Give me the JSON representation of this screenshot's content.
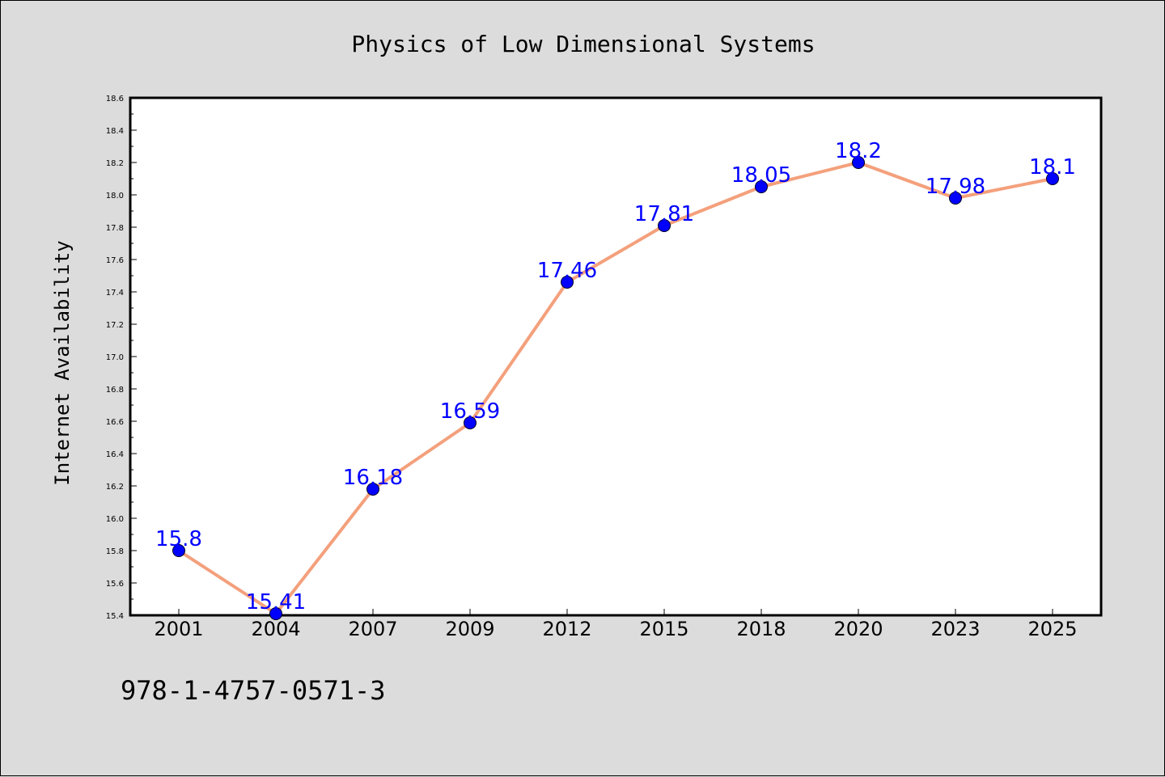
{
  "chart_data": {
    "type": "line",
    "title": "Physics of Low Dimensional Systems",
    "ylabel": "Internet Availability",
    "xlabel": "",
    "categories": [
      "2001",
      "2004",
      "2007",
      "2009",
      "2012",
      "2015",
      "2018",
      "2020",
      "2023",
      "2025"
    ],
    "series": [
      {
        "values": [
          15.8,
          15.41,
          16.18,
          16.59,
          17.46,
          17.81,
          18.05,
          18.2,
          17.98,
          18.1
        ],
        "data_labels": [
          "15.8",
          "15.41",
          "16.18",
          "16.59",
          "17.46",
          "17.81",
          "18.05",
          "18.2",
          "17.98",
          "18.1"
        ]
      }
    ],
    "ylim": [
      15.4,
      18.6
    ],
    "yticks": [
      "15.4",
      "15.6",
      "15.8",
      "16.0",
      "16.2",
      "16.4",
      "16.6",
      "16.8",
      "17.0",
      "17.2",
      "17.4",
      "17.6",
      "17.8",
      "18.0",
      "18.2",
      "18.4",
      "18.6"
    ],
    "grid": false,
    "line_color": "#f4a07c",
    "marker_color": "#0000ff",
    "label_color": "#0000ff"
  },
  "footer": {
    "isbn": "978-1-4757-0571-3"
  }
}
